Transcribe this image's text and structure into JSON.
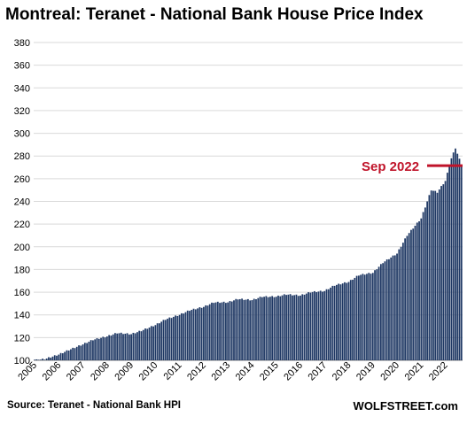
{
  "chart_data": {
    "type": "bar",
    "title": "Montreal: Teranet - National Bank House Price Index",
    "xlabel": "",
    "ylabel": "",
    "ylim": [
      100,
      380
    ],
    "yticks": [
      100,
      120,
      140,
      160,
      180,
      200,
      220,
      240,
      260,
      280,
      300,
      320,
      340,
      360,
      380
    ],
    "xticks": [
      "2005",
      "2006",
      "2007",
      "2008",
      "2009",
      "2010",
      "2011",
      "2012",
      "2013",
      "2014",
      "2015",
      "2016",
      "2017",
      "2018",
      "2019",
      "2020",
      "2021",
      "2022"
    ],
    "grid": true,
    "bar_color": "#1f3864",
    "annotation": {
      "label": "Sep 2022",
      "value": 271.5,
      "color": "#c0142a"
    },
    "anchors": [
      [
        "2005-01",
        100
      ],
      [
        "2005-06",
        101
      ],
      [
        "2006-01",
        105
      ],
      [
        "2006-06",
        109
      ],
      [
        "2007-01",
        114
      ],
      [
        "2007-06",
        118
      ],
      [
        "2008-01",
        121
      ],
      [
        "2008-06",
        124
      ],
      [
        "2009-01",
        123
      ],
      [
        "2009-06",
        126
      ],
      [
        "2010-01",
        131
      ],
      [
        "2010-06",
        136
      ],
      [
        "2011-01",
        140
      ],
      [
        "2011-06",
        144
      ],
      [
        "2012-01",
        147
      ],
      [
        "2012-06",
        151
      ],
      [
        "2013-01",
        151
      ],
      [
        "2013-06",
        154
      ],
      [
        "2014-01",
        153
      ],
      [
        "2014-06",
        156
      ],
      [
        "2015-01",
        156
      ],
      [
        "2015-06",
        158
      ],
      [
        "2016-01",
        157
      ],
      [
        "2016-06",
        160
      ],
      [
        "2017-01",
        161
      ],
      [
        "2017-06",
        166
      ],
      [
        "2018-01",
        169
      ],
      [
        "2018-06",
        175
      ],
      [
        "2019-01",
        177
      ],
      [
        "2019-06",
        186
      ],
      [
        "2020-01",
        194
      ],
      [
        "2020-06",
        210
      ],
      [
        "2021-01",
        225
      ],
      [
        "2021-06",
        250
      ],
      [
        "2021-09",
        248
      ],
      [
        "2022-01",
        258
      ],
      [
        "2022-04",
        278
      ],
      [
        "2022-06",
        287
      ],
      [
        "2022-09",
        272
      ]
    ]
  },
  "source_note": "Source: Teranet - National Bank HPI",
  "brand": "WOLFSTREET.com"
}
